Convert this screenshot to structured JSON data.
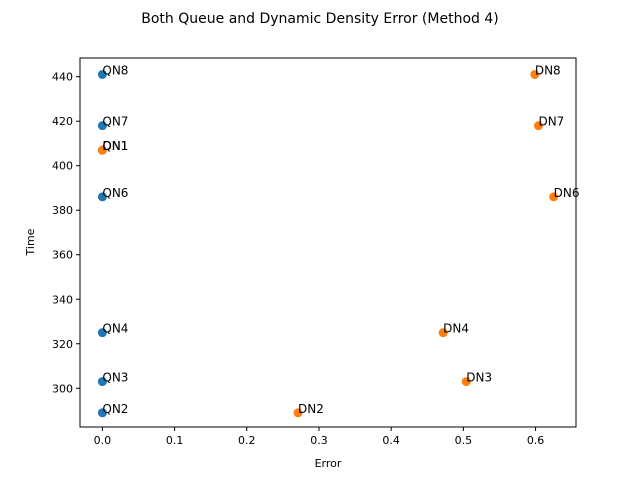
{
  "chart_data": {
    "type": "scatter",
    "title": "Both Queue and Dynamic Density Error (Method 4)",
    "xlabel": "Error",
    "ylabel": "Time",
    "xlim": [
      -0.031,
      0.656
    ],
    "ylim": [
      282.6,
      448.4
    ],
    "xticks": [
      0.0,
      0.1,
      0.2,
      0.3,
      0.4,
      0.5,
      0.6
    ],
    "yticks": [
      300,
      320,
      340,
      360,
      380,
      400,
      420,
      440
    ],
    "grid": false,
    "series": [
      {
        "color": "#1f77b4",
        "points": [
          {
            "x": 0.0,
            "y": 289,
            "label": "QN2"
          },
          {
            "x": 0.0,
            "y": 303,
            "label": "QN3"
          },
          {
            "x": 0.0,
            "y": 325,
            "label": "QN4"
          },
          {
            "x": 0.0,
            "y": 386,
            "label": "QN6"
          },
          {
            "x": 0.0,
            "y": 407,
            "label": "QN1"
          },
          {
            "x": 0.0,
            "y": 418,
            "label": "QN7"
          },
          {
            "x": 0.0,
            "y": 441,
            "label": "QN8"
          }
        ]
      },
      {
        "color": "#ff7f0e",
        "points": [
          {
            "x": 0.0,
            "y": 407,
            "label": "DN1"
          },
          {
            "x": 0.271,
            "y": 289,
            "label": "DN2"
          },
          {
            "x": 0.504,
            "y": 303,
            "label": "DN3"
          },
          {
            "x": 0.472,
            "y": 325,
            "label": "DN4"
          },
          {
            "x": 0.625,
            "y": 386,
            "label": "DN6"
          },
          {
            "x": 0.604,
            "y": 418,
            "label": "DN7"
          },
          {
            "x": 0.599,
            "y": 441,
            "label": "DN8"
          }
        ]
      }
    ]
  }
}
